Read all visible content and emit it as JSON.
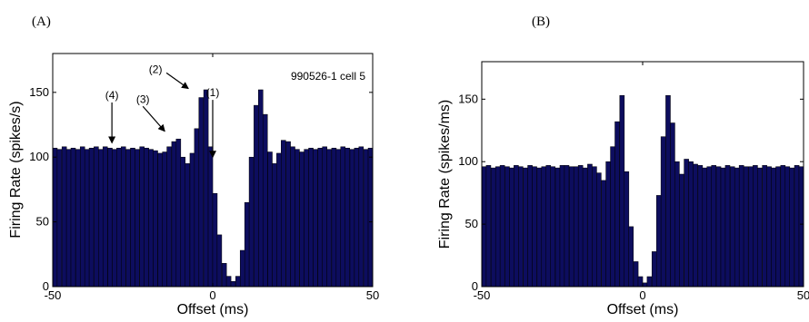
{
  "chart_data": [
    {
      "type": "bar",
      "panel_label": "(A)",
      "annotation": "990526-1 cell 5",
      "markers": [
        {
          "label": "(1)",
          "x": 0,
          "text_y": 147,
          "tip_y": 100
        },
        {
          "label": "(2)",
          "x": -6.5,
          "text_y": 165,
          "tip_y": 153
        },
        {
          "label": "(3)",
          "x": -15,
          "text_y": 142,
          "tip_y": 120
        },
        {
          "label": "(4)",
          "x": -31.5,
          "text_y": 145,
          "tip_y": 111
        }
      ],
      "xlabel": "Offset (ms)",
      "ylabel": "Firing Rate (spikes/s)",
      "xlim": [
        -50,
        50
      ],
      "ylim": [
        0,
        180
      ],
      "xticks": [
        "-50",
        "0",
        "50"
      ],
      "yticks": [
        "0",
        "50",
        "100",
        "150"
      ],
      "bin_width": 1.43,
      "bar_color": "#0d0d5e",
      "x": [
        -49.3,
        -47.9,
        -46.4,
        -45.0,
        -43.6,
        -42.1,
        -40.7,
        -39.3,
        -37.9,
        -36.4,
        -35.0,
        -33.6,
        -32.1,
        -30.7,
        -29.3,
        -27.9,
        -26.4,
        -25.0,
        -23.6,
        -22.1,
        -20.7,
        -19.3,
        -17.9,
        -16.4,
        -15.0,
        -13.6,
        -12.1,
        -10.7,
        -9.3,
        -7.9,
        -6.4,
        -5.0,
        -3.6,
        -2.1,
        -0.7,
        0.7,
        2.1,
        3.6,
        5.0,
        6.4,
        7.9,
        9.3,
        10.7,
        12.1,
        13.6,
        15.0,
        16.4,
        17.9,
        19.3,
        20.7,
        22.1,
        23.6,
        25.0,
        26.4,
        27.9,
        29.3,
        30.7,
        32.1,
        33.6,
        35.0,
        36.4,
        37.9,
        39.3,
        40.7,
        42.1,
        43.6,
        45.0,
        46.4,
        47.9,
        49.3
      ],
      "values": [
        107,
        106,
        108,
        106,
        107,
        106,
        108,
        106,
        107,
        108,
        106,
        108,
        107,
        106,
        107,
        108,
        106,
        107,
        106,
        108,
        107,
        106,
        105,
        103,
        104,
        108,
        112,
        114,
        100,
        95,
        103,
        122,
        146,
        152,
        108,
        72,
        40,
        18,
        8,
        4,
        8,
        28,
        65,
        100,
        140,
        152,
        133,
        104,
        95,
        103,
        113,
        112,
        108,
        106,
        104,
        106,
        107,
        106,
        107,
        108,
        106,
        107,
        106,
        108,
        107,
        106,
        107,
        108,
        106,
        107
      ]
    },
    {
      "type": "bar",
      "panel_label": "(B)",
      "xlabel": "Offset (ms)",
      "ylabel": "Firing Rate (spikes/ms)",
      "xlim": [
        -50,
        50
      ],
      "ylim": [
        0,
        180
      ],
      "xticks": [
        "-50",
        "0",
        "50"
      ],
      "yticks": [
        "0",
        "50",
        "100",
        "150"
      ],
      "bin_width": 1.43,
      "bar_color": "#0d0d5e",
      "x": [
        -49.3,
        -47.9,
        -46.4,
        -45.0,
        -43.6,
        -42.1,
        -40.7,
        -39.3,
        -37.9,
        -36.4,
        -35.0,
        -33.6,
        -32.1,
        -30.7,
        -29.3,
        -27.9,
        -26.4,
        -25.0,
        -23.6,
        -22.1,
        -20.7,
        -19.3,
        -17.9,
        -16.4,
        -15.0,
        -13.6,
        -12.1,
        -10.7,
        -9.3,
        -7.9,
        -6.4,
        -5.0,
        -3.6,
        -2.1,
        -0.7,
        0.7,
        2.1,
        3.6,
        5.0,
        6.4,
        7.9,
        9.3,
        10.7,
        12.1,
        13.6,
        15.0,
        16.4,
        17.9,
        19.3,
        20.7,
        22.1,
        23.6,
        25.0,
        26.4,
        27.9,
        29.3,
        30.7,
        32.1,
        33.6,
        35.0,
        36.4,
        37.9,
        39.3,
        40.7,
        42.1,
        43.6,
        45.0,
        46.4,
        47.9,
        49.3
      ],
      "values": [
        96,
        97,
        95,
        96,
        97,
        96,
        95,
        97,
        96,
        95,
        97,
        96,
        95,
        96,
        97,
        96,
        95,
        97,
        97,
        96,
        96,
        97,
        95,
        98,
        96,
        91,
        85,
        100,
        112,
        132,
        153,
        92,
        48,
        20,
        8,
        3,
        8,
        28,
        73,
        120,
        153,
        131,
        100,
        90,
        102,
        100,
        98,
        97,
        95,
        96,
        97,
        96,
        95,
        97,
        96,
        95,
        97,
        96,
        96,
        97,
        95,
        97,
        96,
        95,
        96,
        97,
        96,
        95,
        97,
        96
      ]
    }
  ]
}
